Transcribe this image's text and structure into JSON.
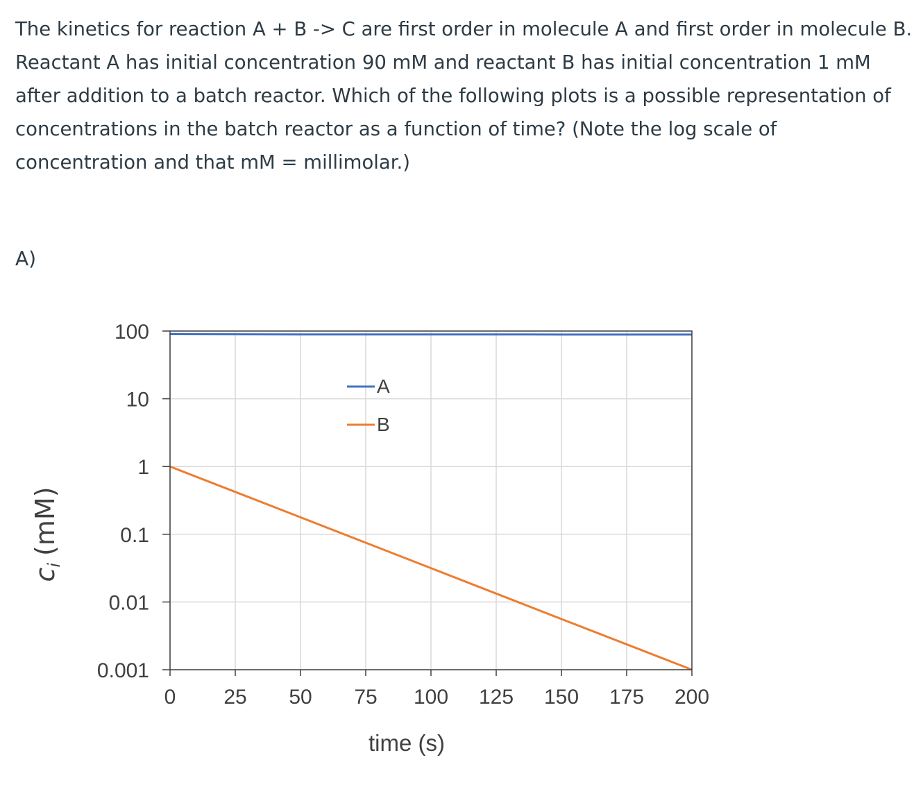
{
  "question": {
    "text": "The kinetics for reaction A + B -> C are first order in molecule A and first order in molecule B. Reactant A has initial concentration 90 mM and reactant B has initial concentration 1 mM after addition to a batch reactor. Which of the following plots is a possible representation of concentrations in the batch reactor as a function of time? (Note the log scale of concentration and that mM = millimolar.)"
  },
  "option": {
    "label": "A)"
  },
  "colors": {
    "A": "#4472c4",
    "B": "#ed7d31",
    "grid": "#d9d9d9",
    "axis": "#404040"
  },
  "chart_data": {
    "type": "line",
    "xlabel": "time (s)",
    "ylabel": "c_i (mM)",
    "ylabel_parts": {
      "main": "c",
      "sub": "i",
      "unit": "(mM)"
    },
    "xlim": [
      0,
      200
    ],
    "ylim": [
      0.001,
      100
    ],
    "yscale": "log",
    "grid": true,
    "legend_position": "top-center",
    "x_ticks": [
      0,
      25,
      50,
      75,
      100,
      125,
      150,
      175,
      200
    ],
    "x_tick_labels": [
      "0",
      "25",
      "50",
      "75",
      "100",
      "125",
      "150",
      "175",
      "200"
    ],
    "y_ticks": [
      0.001,
      0.01,
      0.1,
      1,
      10,
      100
    ],
    "y_tick_labels": [
      "0.001",
      "0.01",
      "0.1",
      "1",
      "10",
      "100"
    ],
    "series": [
      {
        "name": "A",
        "color": "#4472c4",
        "x": [
          0,
          50,
          100,
          150,
          200
        ],
        "y": [
          90,
          89.2,
          89.1,
          89.0,
          89.0
        ]
      },
      {
        "name": "B",
        "color": "#ed7d31",
        "x": [
          0,
          25,
          50,
          75,
          100,
          125,
          150,
          175,
          200
        ],
        "y": [
          1,
          0.4217,
          0.1778,
          0.075,
          0.0316,
          0.0133,
          0.0056,
          0.00237,
          0.001
        ]
      }
    ]
  }
}
